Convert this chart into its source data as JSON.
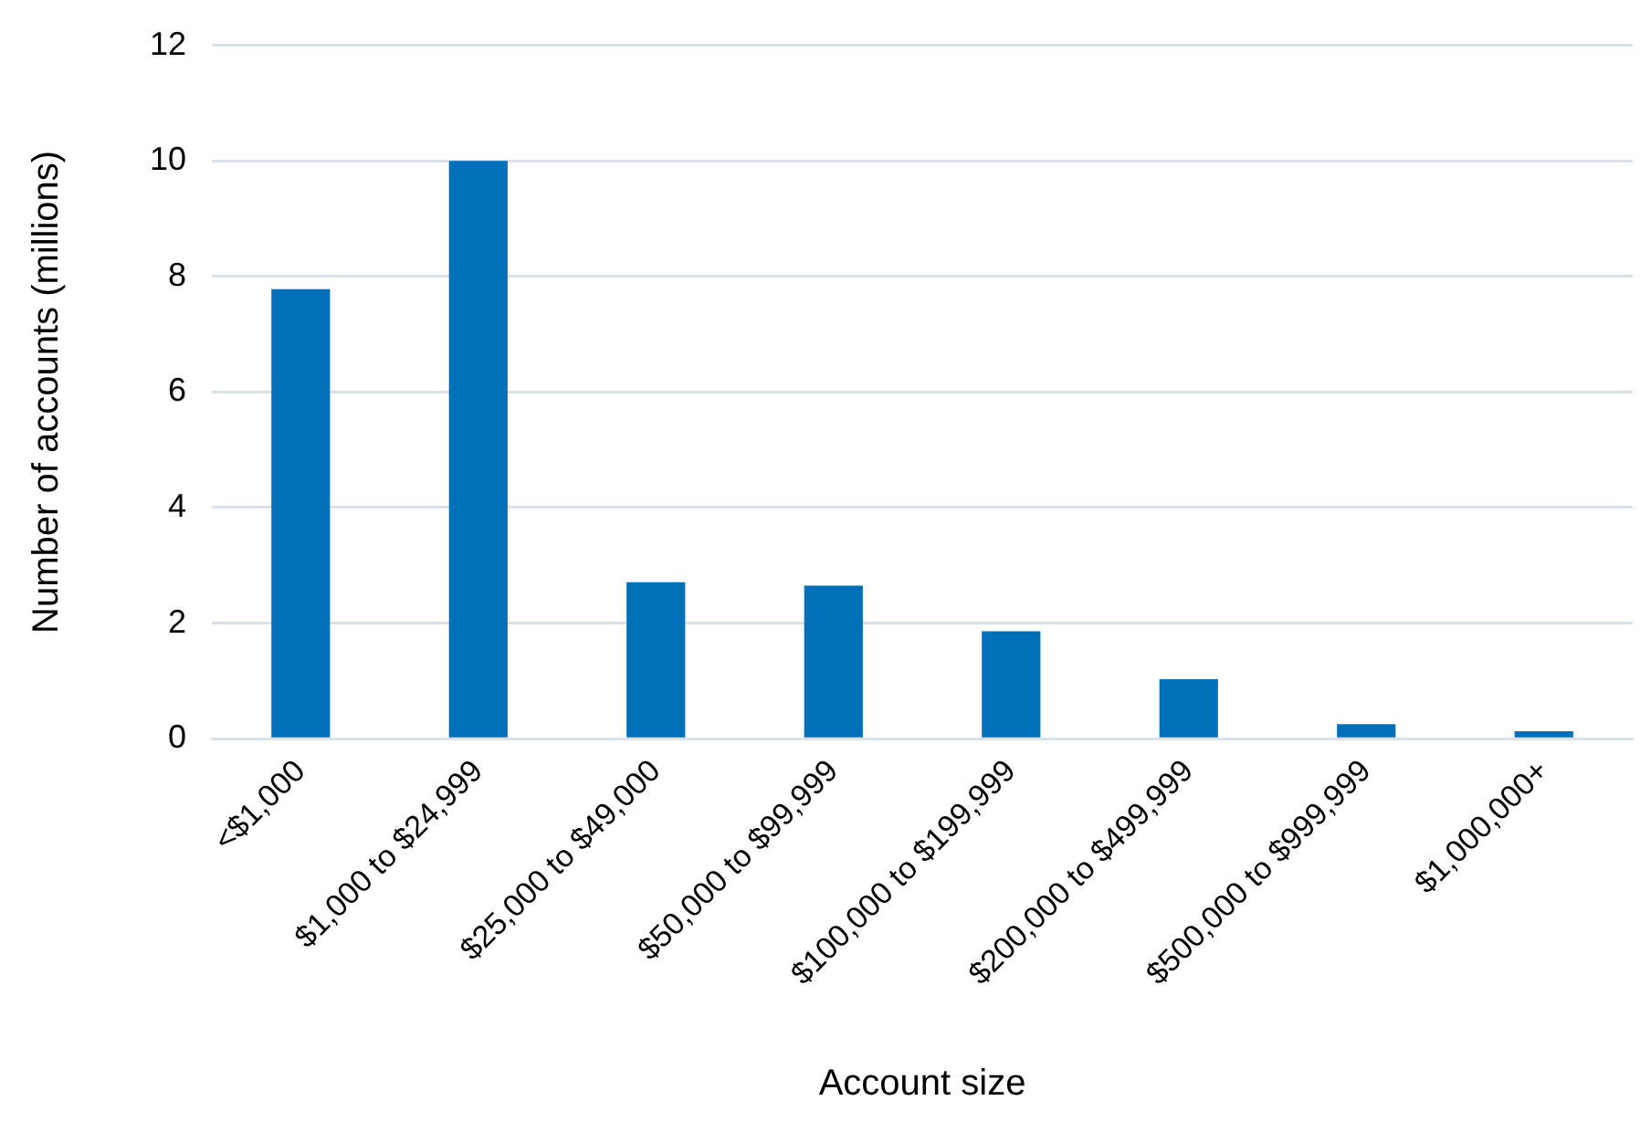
{
  "chart_data": {
    "type": "bar",
    "xlabel": "Account size",
    "ylabel": "Number of accounts (millions)",
    "categories": [
      "<$1,000",
      "$1,000 to $24,999",
      "$25,000 to $49,000",
      "$50,000 to $99,999",
      "$100,000 to $199,999",
      "$200,000 to $499,999",
      "$500,000 to $999,999",
      "$1,000,000+"
    ],
    "values": [
      7.78,
      10,
      2.71,
      2.65,
      1.86,
      1.03,
      0.25,
      0.13
    ],
    "color": "#0070b8",
    "ylim": [
      0,
      12
    ],
    "yticks": [
      0,
      2,
      4,
      6,
      8,
      10,
      12
    ],
    "grid": "y",
    "legend": false
  }
}
